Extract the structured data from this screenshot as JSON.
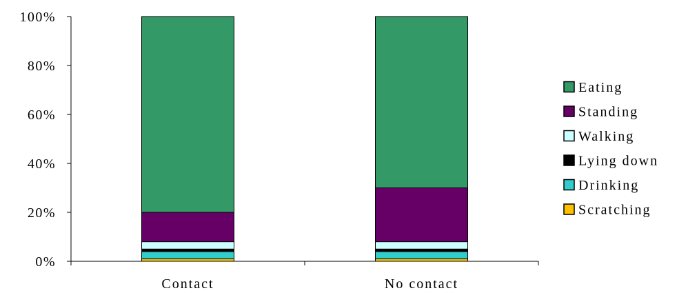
{
  "chart_data": {
    "type": "bar",
    "stacked": true,
    "percent": true,
    "categories": [
      "Contact",
      "No contact"
    ],
    "series": [
      {
        "name": "Scratching",
        "color": "#FFC000",
        "values": [
          1,
          1
        ]
      },
      {
        "name": "Drinking",
        "color": "#33CCCC",
        "values": [
          3,
          3
        ]
      },
      {
        "name": "Lying down",
        "color": "#000000",
        "values": [
          1,
          1
        ]
      },
      {
        "name": "Walking",
        "color": "#CCFFFF",
        "values": [
          3,
          3
        ]
      },
      {
        "name": "Standing",
        "color": "#660066",
        "values": [
          12,
          22
        ]
      },
      {
        "name": "Eating",
        "color": "#339966",
        "values": [
          80,
          70
        ]
      }
    ],
    "yticks": [
      "0%",
      "20%",
      "40%",
      "60%",
      "80%",
      "100%"
    ],
    "ylim": [
      0,
      100
    ],
    "title": "",
    "xlabel": "",
    "ylabel": "",
    "legend_position": "right",
    "legend_order": [
      "Eating",
      "Standing",
      "Walking",
      "Lying down",
      "Drinking",
      "Scratching"
    ]
  }
}
